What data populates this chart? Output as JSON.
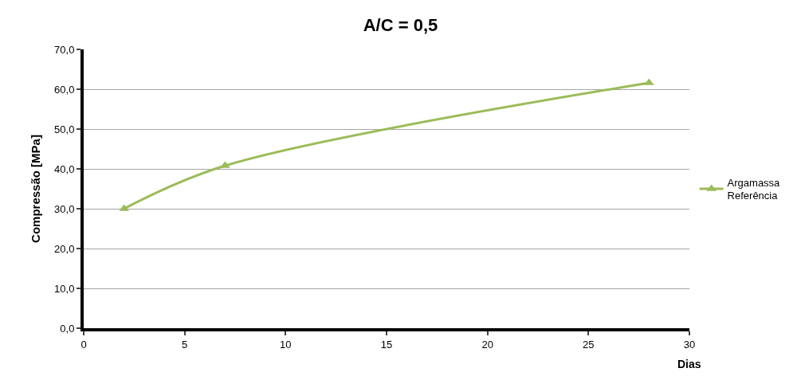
{
  "chart_data": {
    "type": "line",
    "title": "A/C = 0,5",
    "xlabel": "Dias",
    "ylabel": "Compressão [MPa]",
    "x": [
      2,
      7,
      28
    ],
    "series": [
      {
        "name": "Argamassa Referência",
        "color": "#9bbb59",
        "values": [
          30.0,
          40.8,
          61.6
        ]
      }
    ],
    "xlim": [
      0,
      30
    ],
    "xticks": [
      0,
      5,
      10,
      15,
      20,
      25,
      30
    ],
    "ylim": [
      0,
      70
    ],
    "yticks": [
      {
        "value": 0,
        "label": "0,0"
      },
      {
        "value": 10,
        "label": "10,0"
      },
      {
        "value": 20,
        "label": "20,0"
      },
      {
        "value": 30,
        "label": "30,0"
      },
      {
        "value": 40,
        "label": "40,0"
      },
      {
        "value": 50,
        "label": "50,0"
      },
      {
        "value": 60,
        "label": "60,0"
      },
      {
        "value": 70,
        "label": "70,0"
      }
    ],
    "grid": "y",
    "legend": "right",
    "marker": "triangle",
    "line_style": "solid"
  }
}
